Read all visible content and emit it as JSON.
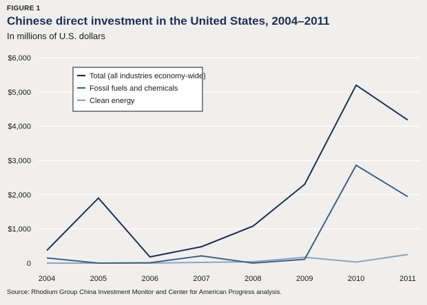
{
  "figure_label": "FIGURE 1",
  "source": "Source: Rhodium Group China Investment Monitor and Center for American Progress analysis.",
  "colors": {
    "background": "#f0efed",
    "title": "#1d2f52",
    "total": "#1d2f52",
    "fossil": "#3f5f82",
    "clean": "#8aa3bd",
    "grid": "#ffffff",
    "legend_bg": "#ffffff",
    "legend_border": "#1a1a1a"
  },
  "chart_data": {
    "type": "line",
    "title": "Chinese direct investment in the United States, 2004–2011",
    "subtitle": "In millions of U.S. dollars",
    "xlabel": "",
    "ylabel": "",
    "categories": [
      "2004",
      "2005",
      "2006",
      "2007",
      "2008",
      "2009",
      "2010",
      "2011"
    ],
    "y_ticks": [
      0,
      1000,
      2000,
      3000,
      4000,
      5000,
      6000
    ],
    "y_tick_labels": [
      "0",
      "$1,000",
      "$2,000",
      "$3,000",
      "$4,000",
      "$5,000",
      "$6,000"
    ],
    "ylim": [
      0,
      6000
    ],
    "grid": true,
    "legend_position": "top-left",
    "series": [
      {
        "name": "Total (all industries economy-wide)",
        "color": "#1d2f52",
        "values": [
          370,
          1900,
          180,
          480,
          1080,
          2300,
          5200,
          4180
        ]
      },
      {
        "name": "Fossil fuels and chemicals",
        "color": "#3f5f82",
        "values": [
          150,
          0,
          10,
          210,
          0,
          110,
          2860,
          1940
        ]
      },
      {
        "name": "Clean energy",
        "color": "#8aa3bd",
        "values": [
          0,
          0,
          0,
          20,
          40,
          170,
          30,
          250
        ]
      }
    ]
  }
}
